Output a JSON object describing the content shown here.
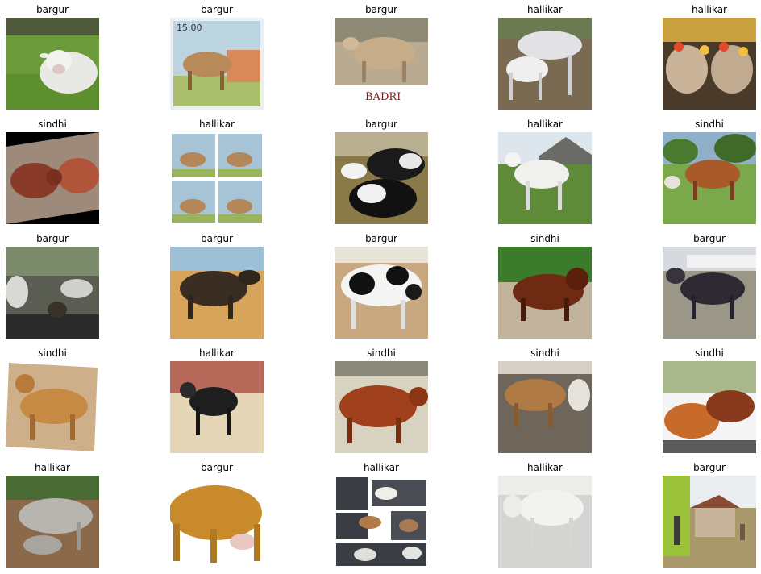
{
  "grid": {
    "rows": [
      [
        {
          "label": "bargur"
        },
        {
          "label": "bargur",
          "stamp_text": "15.00"
        },
        {
          "label": "bargur",
          "caption": "BADRI"
        },
        {
          "label": "hallikar"
        },
        {
          "label": "hallikar"
        }
      ],
      [
        {
          "label": "sindhi"
        },
        {
          "label": "hallikar"
        },
        {
          "label": "bargur"
        },
        {
          "label": "hallikar"
        },
        {
          "label": "sindhi"
        }
      ],
      [
        {
          "label": "bargur"
        },
        {
          "label": "bargur"
        },
        {
          "label": "bargur"
        },
        {
          "label": "sindhi"
        },
        {
          "label": "bargur"
        }
      ],
      [
        {
          "label": "sindhi"
        },
        {
          "label": "hallikar"
        },
        {
          "label": "sindhi"
        },
        {
          "label": "sindhi"
        },
        {
          "label": "sindhi"
        }
      ],
      [
        {
          "label": "hallikar"
        },
        {
          "label": "bargur"
        },
        {
          "label": "hallikar"
        },
        {
          "label": "hallikar"
        },
        {
          "label": "bargur"
        }
      ]
    ]
  },
  "colors": {
    "background": "#ffffff",
    "label": "#000000"
  }
}
